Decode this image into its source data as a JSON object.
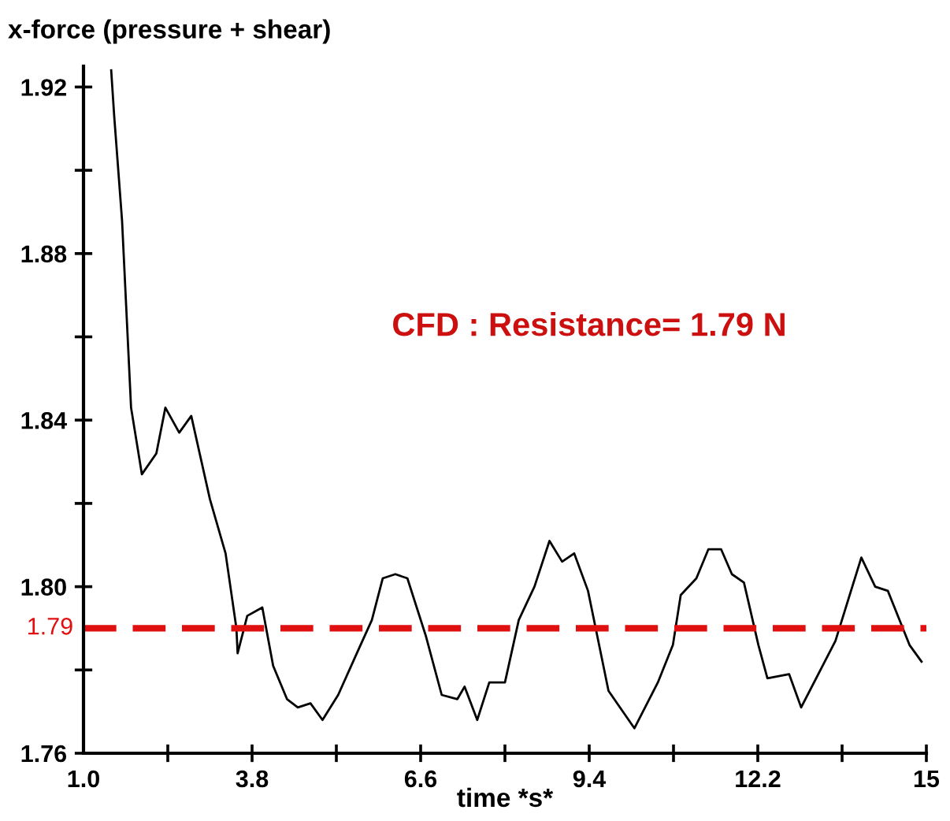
{
  "chart_data": {
    "type": "line",
    "ylabel": "x-force (pressure + shear)",
    "xlabel": "time *s*",
    "annotations": [
      "CFD : Resistance= 1.79 N"
    ],
    "x": [
      1.46,
      1.51,
      1.64,
      1.79,
      1.97,
      2.21,
      2.36,
      2.59,
      2.79,
      3.1,
      3.36,
      3.54,
      3.56,
      3.72,
      3.97,
      4.15,
      4.38,
      4.56,
      4.77,
      4.97,
      5.23,
      5.54,
      5.79,
      5.97,
      6.18,
      6.38,
      6.69,
      6.95,
      7.21,
      7.33,
      7.54,
      7.74,
      8.0,
      8.23,
      8.49,
      8.74,
      8.95,
      9.15,
      9.38,
      9.72,
      10.15,
      10.54,
      10.79,
      10.92,
      11.18,
      11.38,
      11.59,
      11.77,
      11.97,
      12.21,
      12.36,
      12.72,
      12.92,
      13.49,
      13.92,
      14.15,
      14.36,
      14.72,
      14.92
    ],
    "series": [
      {
        "color": "#000000",
        "values": [
          1.924,
          1.913,
          1.888,
          1.843,
          1.827,
          1.832,
          1.843,
          1.837,
          1.841,
          1.821,
          1.808,
          1.79,
          1.784,
          1.793,
          1.795,
          1.781,
          1.773,
          1.771,
          1.772,
          1.768,
          1.774,
          1.784,
          1.792,
          1.802,
          1.803,
          1.802,
          1.788,
          1.774,
          1.773,
          1.776,
          1.768,
          1.777,
          1.777,
          1.792,
          1.8,
          1.811,
          1.806,
          1.808,
          1.799,
          1.775,
          1.766,
          1.777,
          1.786,
          1.798,
          1.802,
          1.809,
          1.809,
          1.803,
          1.801,
          1.786,
          1.778,
          1.779,
          1.771,
          1.787,
          1.807,
          1.8,
          1.799,
          1.786,
          1.782
        ]
      }
    ],
    "ref_lines": [
      {
        "axis": "y",
        "value": 1.79,
        "label": "1.79",
        "color": "#e01010",
        "line_style": "dashed"
      }
    ],
    "xlim": [
      1.0,
      15.0
    ],
    "ylim": [
      1.76,
      1.925
    ],
    "xticks": [
      {
        "value": 1.0,
        "label": "1.0"
      },
      {
        "value": 2.4,
        "label": null
      },
      3.8,
      {
        "value": 5.2,
        "label": null
      },
      6.6,
      {
        "value": 8.0,
        "label": null
      },
      9.4,
      {
        "value": 10.8,
        "label": null
      },
      12.2,
      {
        "value": 13.6,
        "label": null
      },
      {
        "value": 15.0,
        "label": "15"
      }
    ],
    "yticks": [
      {
        "value": 1.76,
        "label": "1.76"
      },
      {
        "value": 1.78,
        "label": null
      },
      {
        "value": 1.8,
        "label": "1.80"
      },
      {
        "value": 1.82,
        "label": null
      },
      1.84,
      {
        "value": 1.86,
        "label": null
      },
      1.88,
      {
        "value": 1.9,
        "label": null
      },
      1.92
    ],
    "grid": false,
    "marker": "none",
    "line_style": "solid"
  }
}
